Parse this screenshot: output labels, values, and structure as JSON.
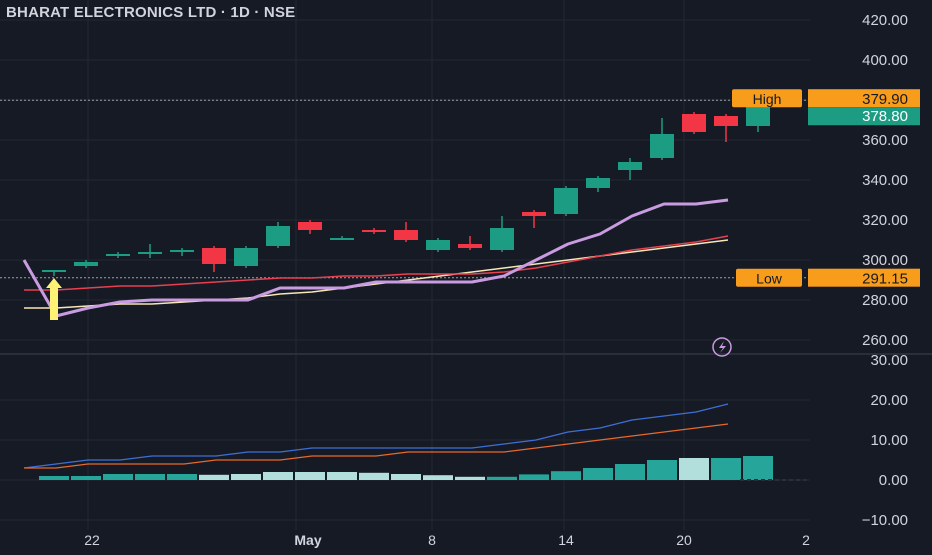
{
  "header": {
    "symbol_title": "BHARAT ELECTRONICS LTD · 1D · NSE"
  },
  "price_axis": {
    "ticks": [
      "420.00",
      "400.00",
      "360.00",
      "340.00",
      "320.00",
      "300.00",
      "280.00",
      "260.00"
    ],
    "high_label": "High",
    "high_value": "379.90",
    "last_value": "378.80",
    "low_label": "Low",
    "low_value": "291.15"
  },
  "indicator_axis": {
    "ticks": [
      "30.00",
      "20.00",
      "10.00",
      "0.00",
      "−10.00"
    ]
  },
  "time_axis": {
    "ticks": [
      "22",
      "May",
      "8",
      "14",
      "20",
      "2"
    ]
  },
  "colors": {
    "background": "#161a25",
    "up": "#1c9c83",
    "down": "#f23645",
    "ma_long": "#f7e6b8",
    "ma_mid": "#e8404e",
    "trail": "#c99be0",
    "high_low_tag": "#f89c1c",
    "adx_line": "#3f6fd6",
    "signal_line": "#e8692a",
    "hist_light": "#b2dfdb",
    "hist_dark": "#26a69a",
    "arrow": "#fff176"
  },
  "chart_data": {
    "type": "candlestick",
    "title": "BHARAT ELECTRONICS LTD · 1D · NSE",
    "price_range": [
      250,
      425
    ],
    "candles": [
      {
        "o": 294,
        "h": 295,
        "l": 292,
        "c": 295
      },
      {
        "o": 297,
        "h": 300,
        "l": 296,
        "c": 299
      },
      {
        "o": 302,
        "h": 304,
        "l": 301,
        "c": 303
      },
      {
        "o": 303,
        "h": 308,
        "l": 301,
        "c": 304
      },
      {
        "o": 304,
        "h": 306,
        "l": 302,
        "c": 305
      },
      {
        "o": 306,
        "h": 307,
        "l": 294,
        "c": 298
      },
      {
        "o": 297,
        "h": 307,
        "l": 296,
        "c": 306
      },
      {
        "o": 307,
        "h": 319,
        "l": 306,
        "c": 317
      },
      {
        "o": 319,
        "h": 320,
        "l": 313,
        "c": 315
      },
      {
        "o": 311,
        "h": 312,
        "l": 310,
        "c": 311
      },
      {
        "o": 315,
        "h": 316,
        "l": 313,
        "c": 314
      },
      {
        "o": 315,
        "h": 319,
        "l": 309,
        "c": 310
      },
      {
        "o": 305,
        "h": 311,
        "l": 304,
        "c": 310
      },
      {
        "o": 308,
        "h": 312,
        "l": 305,
        "c": 306
      },
      {
        "o": 305,
        "h": 322,
        "l": 304,
        "c": 316
      },
      {
        "o": 324,
        "h": 325,
        "l": 316,
        "c": 322
      },
      {
        "o": 323,
        "h": 337,
        "l": 322,
        "c": 336
      },
      {
        "o": 336,
        "h": 342,
        "l": 334,
        "c": 341
      },
      {
        "o": 345,
        "h": 351,
        "l": 340,
        "c": 349
      },
      {
        "o": 351,
        "h": 371,
        "l": 350,
        "c": 363
      },
      {
        "o": 373,
        "h": 374,
        "l": 363,
        "c": 364
      },
      {
        "o": 372,
        "h": 373,
        "l": 359,
        "c": 367
      },
      {
        "o": 367,
        "h": 379.9,
        "l": 364,
        "c": 378.8
      }
    ],
    "ma_long": [
      276,
      276,
      277,
      278,
      278,
      279,
      280,
      281,
      283,
      284,
      286,
      288,
      290,
      292,
      294,
      296,
      298,
      300,
      302,
      304,
      306,
      308,
      310
    ],
    "ma_mid": [
      285,
      285,
      286,
      287,
      287,
      288,
      289,
      290,
      291,
      291,
      292,
      292,
      293,
      293,
      293,
      294,
      296,
      299,
      302,
      305,
      307,
      309,
      312
    ],
    "trail_line": [
      300,
      272,
      276,
      279,
      280,
      280,
      280,
      280,
      286,
      286,
      286,
      289,
      289,
      289,
      289,
      292,
      300,
      308,
      313,
      322,
      328,
      328,
      330
    ],
    "indicator": {
      "adx": [
        3,
        4,
        5,
        5,
        6,
        6,
        6,
        7,
        7,
        8,
        8,
        8,
        8,
        8,
        8,
        9,
        10,
        12,
        13,
        15,
        16,
        17,
        19
      ],
      "signal": [
        3,
        3,
        4,
        4,
        4,
        4,
        5,
        5,
        5,
        6,
        6,
        6,
        7,
        7,
        7,
        7,
        8,
        9,
        10,
        11,
        12,
        13,
        14
      ],
      "histogram": [
        1,
        1,
        1.5,
        1.5,
        1.5,
        1.3,
        1.5,
        2,
        2,
        2,
        1.8,
        1.5,
        1.2,
        0.8,
        0.8,
        1.4,
        2.2,
        3,
        4,
        5,
        5.5,
        5.5,
        6
      ]
    }
  }
}
